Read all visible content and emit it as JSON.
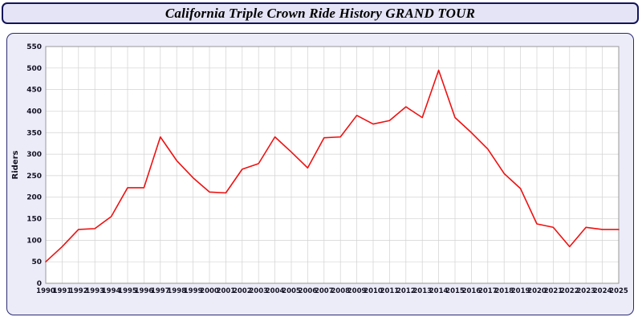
{
  "header": {
    "title": "California Triple Crown Ride History GRAND TOUR"
  },
  "chart_data": {
    "type": "line",
    "title": "California Triple Crown Ride History GRAND TOUR",
    "xlabel": "",
    "ylabel": "Riders",
    "ylim": [
      0,
      550
    ],
    "ytick_step": 50,
    "grid": true,
    "legend_position": "none",
    "line_color": "#ee1111",
    "grid_color": "#d2d2d2",
    "plot_bg": "#ffffff",
    "axis_text_color": "#111122",
    "x": [
      1990,
      1991,
      1992,
      1993,
      1994,
      1995,
      1996,
      1997,
      1998,
      1999,
      2000,
      2001,
      2002,
      2003,
      2004,
      2005,
      2006,
      2007,
      2008,
      2009,
      2010,
      2011,
      2012,
      2013,
      2014,
      2015,
      2016,
      2017,
      2018,
      2019,
      2020,
      2021,
      2022,
      2023,
      2024,
      2025
    ],
    "series": [
      {
        "name": "Riders",
        "values": [
          50,
          85,
          125,
          127,
          155,
          222,
          222,
          340,
          285,
          245,
          212,
          210,
          265,
          278,
          340,
          305,
          268,
          338,
          340,
          390,
          370,
          378,
          410,
          385,
          495,
          385,
          350,
          312,
          255,
          220,
          138,
          130,
          85,
          130,
          125,
          125
        ]
      }
    ]
  }
}
